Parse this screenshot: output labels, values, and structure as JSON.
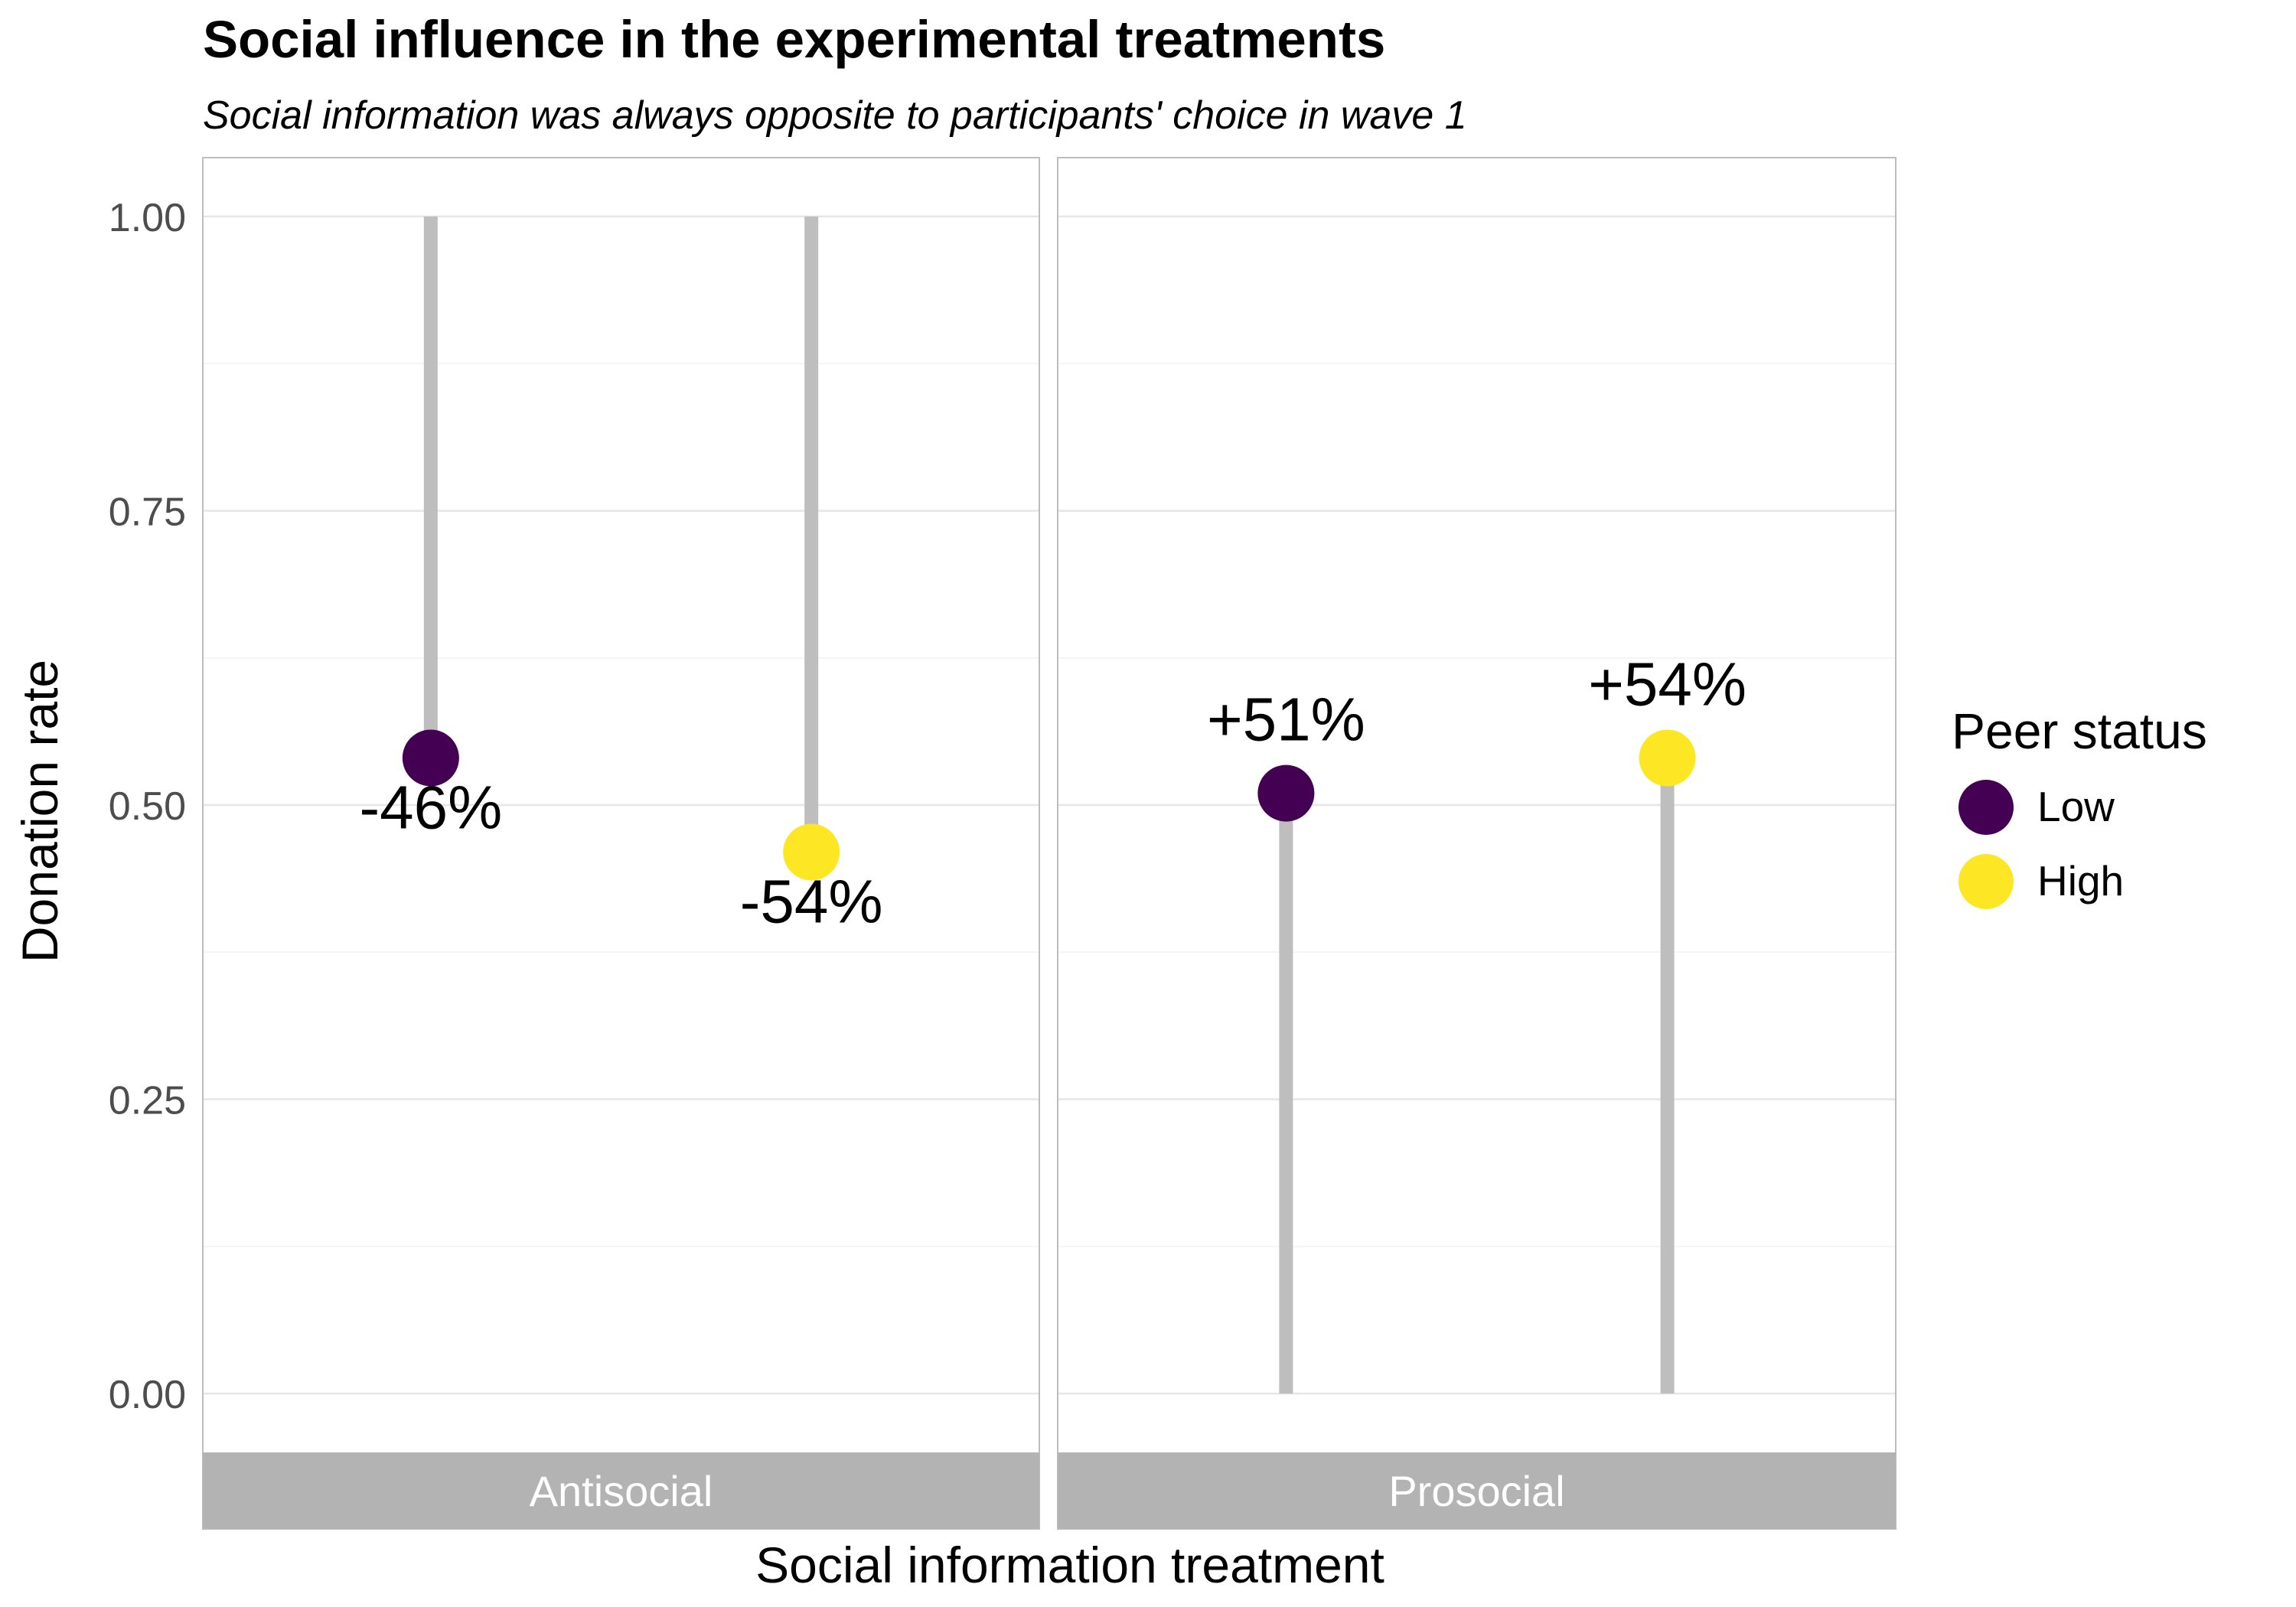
{
  "chart_data": {
    "type": "lollipop",
    "title": "Social influence in the experimental treatments",
    "subtitle": "Social information was always opposite to participants' choice in wave 1",
    "xlabel": "Social information treatment",
    "ylabel": "Donation rate",
    "ylim": [
      -0.05,
      1.05
    ],
    "yticks": [
      "0.00",
      "0.25",
      "0.50",
      "0.75",
      "1.00"
    ],
    "grid": true,
    "legend": {
      "title": "Peer status",
      "placement": "right",
      "entries": [
        {
          "name": "Low",
          "color": "#440154"
        },
        {
          "name": "High",
          "color": "#FDE725"
        }
      ]
    },
    "panels": [
      {
        "label": "Antisocial",
        "baseline": 1.0,
        "points": [
          {
            "group": "Low",
            "value": 0.54,
            "label": "-46%"
          },
          {
            "group": "High",
            "value": 0.46,
            "label": "-54%"
          }
        ]
      },
      {
        "label": "Prosocial",
        "baseline": 0.0,
        "points": [
          {
            "group": "Low",
            "value": 0.51,
            "label": "+51%"
          },
          {
            "group": "High",
            "value": 0.54,
            "label": "+54%"
          }
        ]
      }
    ]
  }
}
